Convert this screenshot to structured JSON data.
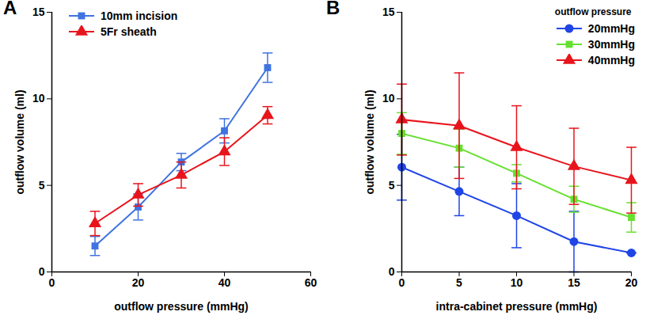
{
  "chart_data": [
    {
      "type": "line",
      "title": "A",
      "x_label": "outflow pressure (mmHg)",
      "y_label": "outflow volume (ml)",
      "x": [
        10,
        20,
        30,
        40,
        50
      ],
      "series": [
        {
          "name": "10mm incision",
          "color": "#3f73e0",
          "marker": "square",
          "values": [
            1.5,
            3.75,
            6.35,
            8.15,
            11.8
          ],
          "errors": [
            0.55,
            0.75,
            0.5,
            0.7,
            0.85
          ]
        },
        {
          "name": "5Fr sheath",
          "color": "#e8141c",
          "marker": "triangle",
          "values": [
            2.8,
            4.45,
            5.6,
            6.95,
            9.05
          ],
          "errors": [
            0.7,
            0.65,
            0.75,
            0.8,
            0.5
          ]
        }
      ],
      "xlim": [
        0,
        60
      ],
      "xticks": [
        0,
        20,
        40,
        60
      ],
      "ylim": [
        0,
        15
      ],
      "yticks": [
        0,
        5,
        10,
        15
      ],
      "grid": false,
      "legend": "top-left"
    },
    {
      "type": "line",
      "title": "B",
      "x_label": "intra-cabinet pressure (mmHg)",
      "y_label": "outflow volume (ml)",
      "legend_title": "outflow pressure",
      "x": [
        0,
        5,
        10,
        15,
        20
      ],
      "series": [
        {
          "name": "20mmHg",
          "color": "#1f45e6",
          "marker": "circle",
          "values": [
            6.05,
            4.65,
            3.25,
            1.75,
            1.1
          ],
          "errors": [
            1.9,
            1.4,
            1.85,
            1.75,
            0
          ]
        },
        {
          "name": "30mmHg",
          "color": "#66e02e",
          "marker": "square",
          "values": [
            8.0,
            7.15,
            5.7,
            4.2,
            3.15
          ],
          "errors": [
            1.2,
            1.1,
            0.5,
            0.75,
            0.85
          ]
        },
        {
          "name": "40mmHg",
          "color": "#e8141c",
          "marker": "triangle",
          "values": [
            8.8,
            8.45,
            7.2,
            6.1,
            5.3
          ],
          "errors": [
            2.05,
            3.05,
            2.4,
            2.2,
            1.9
          ]
        }
      ],
      "xlim": [
        0,
        20
      ],
      "xticks": [
        0,
        5,
        10,
        15,
        20
      ],
      "ylim": [
        0,
        15
      ],
      "yticks": [
        0,
        5,
        10,
        15
      ],
      "grid": false,
      "legend": "top-right"
    }
  ]
}
